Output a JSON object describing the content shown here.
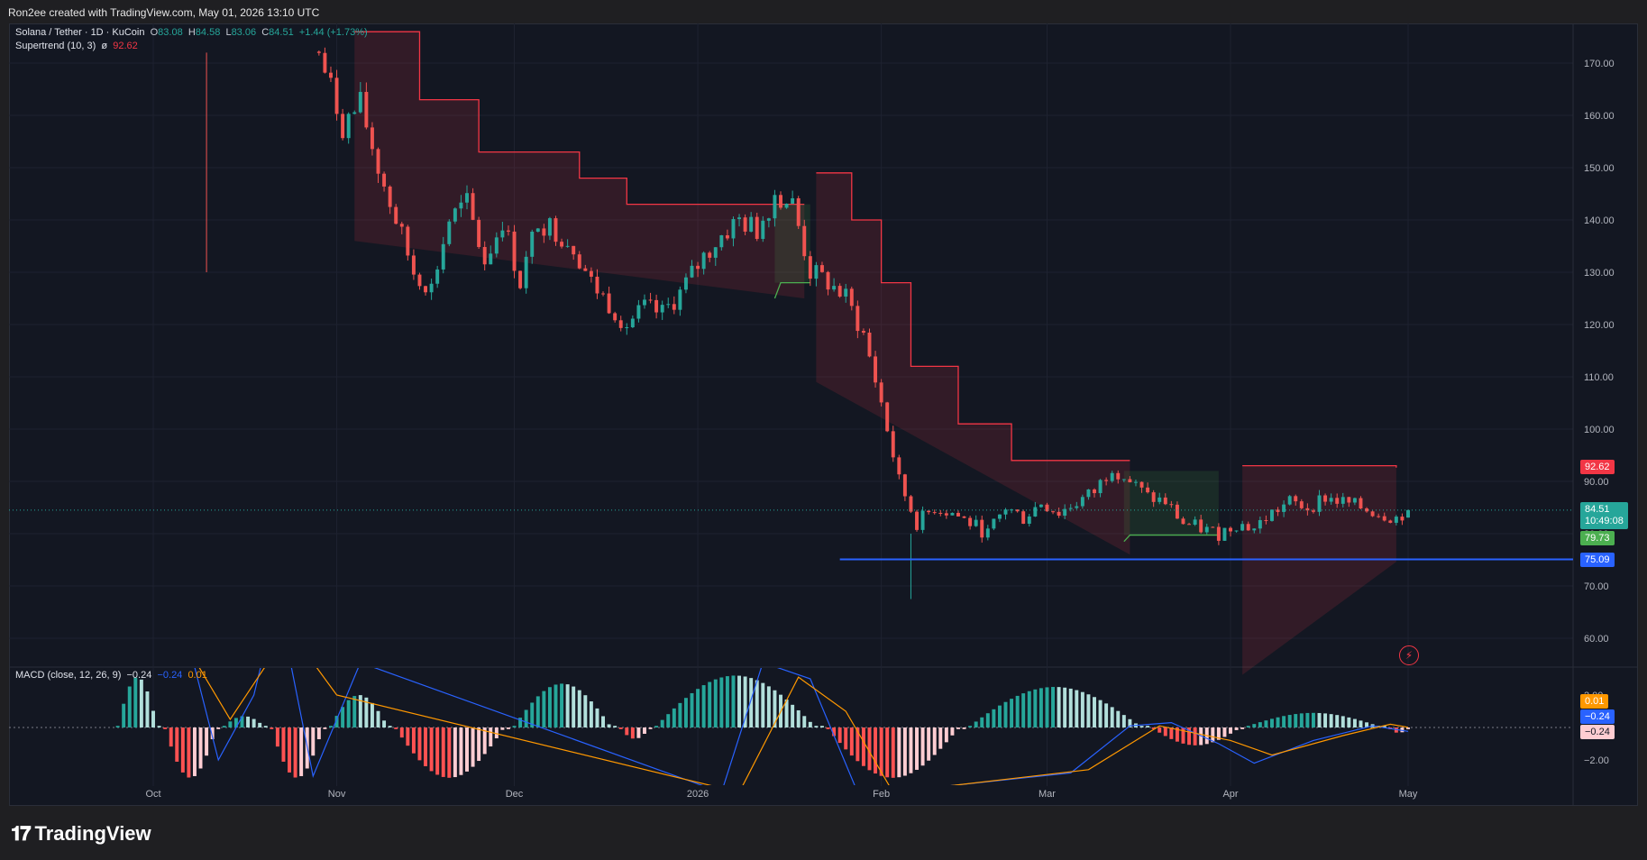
{
  "credit": "Ron2ee created with TradingView.com, May 01, 2026 13:10 UTC",
  "legend": {
    "symbol": "Solana / Tether · 1D · KuCoin",
    "o_label": "O",
    "o_value": "83.08",
    "h_label": "H",
    "h_value": "84.58",
    "l_label": "L",
    "l_value": "83.06",
    "c_label": "C",
    "c_value": "84.51",
    "change": "+1.44 (+1.73%)",
    "supertrend_label": "Supertrend (10, 3)",
    "supertrend_symbol": "ø",
    "supertrend_value": "92.62",
    "macd_label": "MACD (close, 12, 26, 9)",
    "macd_v1": "−0.24",
    "macd_v2": "−0.24",
    "macd_v3": "0.01"
  },
  "price_badges": {
    "supertrend": "92.62",
    "last_price": "84.51",
    "countdown": "10:49:08",
    "support_green": "79.73",
    "support_line": "75.09"
  },
  "macd_badges": {
    "signal": "0.01",
    "macd": "−0.24",
    "hist": "−0.24"
  },
  "brand": "TradingView",
  "icons": {
    "logo": "tradingview-logo-icon",
    "alert": "lightning-bolt-icon"
  },
  "colors": {
    "up": "#26a69a",
    "down": "#ef5350",
    "supertrend_down": "#f23645",
    "supertrend_up": "#4caf50",
    "support": "#2962ff",
    "macd": "#2962ff",
    "signal": "#ff9800",
    "hist_up_strong": "#26a69a",
    "hist_up_weak": "#b2dfdb",
    "hist_down_strong": "#ff5252",
    "hist_down_weak": "#ffcdd2"
  },
  "chart_data": {
    "type": "candlestick",
    "symbol": "Solana / Tether · 1D · KuCoin",
    "y_ticks": [
      "170.00",
      "160.00",
      "150.00",
      "140.00",
      "130.00",
      "120.00",
      "110.00",
      "100.00",
      "90.00",
      "80.00",
      "70.00",
      "60.00"
    ],
    "macd_ticks": [
      "2.00",
      "−2.00"
    ],
    "x_ticks": [
      "Oct",
      "Nov",
      "Dec",
      "2026",
      "Feb",
      "Mar",
      "Apr",
      "May"
    ],
    "ylim": [
      55,
      175
    ],
    "support_level": 75.09,
    "last_close": 84.51,
    "price_path": [
      [
        "2025-10-29",
        172
      ],
      [
        "2025-11-02",
        158
      ],
      [
        "2025-11-05",
        162
      ],
      [
        "2025-11-08",
        150
      ],
      [
        "2025-11-11",
        140
      ],
      [
        "2025-11-14",
        130
      ],
      [
        "2025-11-17",
        127
      ],
      [
        "2025-11-20",
        140
      ],
      [
        "2025-11-23",
        143
      ],
      [
        "2025-11-26",
        132
      ],
      [
        "2025-11-29",
        140
      ],
      [
        "2025-12-02",
        128
      ],
      [
        "2025-12-05",
        140
      ],
      [
        "2025-12-08",
        138
      ],
      [
        "2025-12-11",
        135
      ],
      [
        "2025-12-14",
        128
      ],
      [
        "2025-12-17",
        124
      ],
      [
        "2025-12-20",
        120
      ],
      [
        "2025-12-23",
        123
      ],
      [
        "2025-12-26",
        122
      ],
      [
        "2025-12-29",
        126
      ],
      [
        "2026-01-02",
        133
      ],
      [
        "2026-01-05",
        137
      ],
      [
        "2026-01-08",
        140
      ],
      [
        "2026-01-11",
        138
      ],
      [
        "2026-01-14",
        145
      ],
      [
        "2026-01-17",
        143
      ],
      [
        "2026-01-20",
        130
      ],
      [
        "2026-01-23",
        128
      ],
      [
        "2026-01-26",
        125
      ],
      [
        "2026-01-29",
        118
      ],
      [
        "2026-02-01",
        105
      ],
      [
        "2026-02-04",
        90
      ],
      [
        "2026-02-07",
        82
      ],
      [
        "2026-02-10",
        85
      ],
      [
        "2026-02-13",
        84
      ],
      [
        "2026-02-16",
        82
      ],
      [
        "2026-02-19",
        80
      ],
      [
        "2026-02-22",
        85
      ],
      [
        "2026-02-25",
        83
      ],
      [
        "2026-02-28",
        86
      ],
      [
        "2026-03-03",
        84
      ],
      [
        "2026-03-06",
        86
      ],
      [
        "2026-03-09",
        88
      ],
      [
        "2026-03-12",
        93
      ],
      [
        "2026-03-15",
        90
      ],
      [
        "2026-03-18",
        87
      ],
      [
        "2026-03-21",
        86
      ],
      [
        "2026-03-24",
        82
      ],
      [
        "2026-03-27",
        81
      ],
      [
        "2026-03-30",
        80
      ],
      [
        "2026-04-02",
        82
      ],
      [
        "2026-04-05",
        81
      ],
      [
        "2026-04-08",
        84
      ],
      [
        "2026-04-11",
        86
      ],
      [
        "2026-04-14",
        85
      ],
      [
        "2026-04-17",
        87
      ],
      [
        "2026-04-20",
        86
      ],
      [
        "2026-04-23",
        85
      ],
      [
        "2026-04-26",
        84
      ],
      [
        "2026-04-29",
        83
      ],
      [
        "2026-05-01",
        84.51
      ]
    ]
  }
}
